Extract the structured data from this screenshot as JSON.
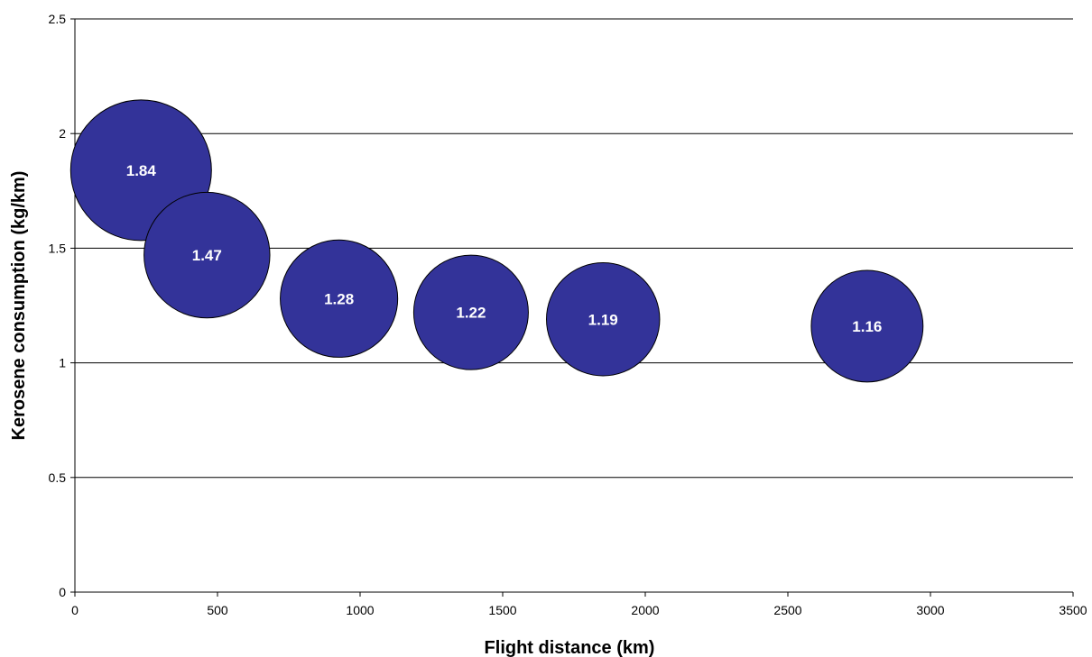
{
  "chart_data": {
    "type": "bubble",
    "title": "",
    "xlabel": "Flight distance (km)",
    "ylabel": "Kerosene consumption (kg/km)",
    "xlim": [
      0,
      3500
    ],
    "ylim": [
      0,
      2.5
    ],
    "x_ticks": [
      0,
      500,
      1000,
      1500,
      2000,
      2500,
      3000,
      3500
    ],
    "x_tick_labels": [
      "0",
      "500",
      "1000",
      "1500",
      "2000",
      "2500",
      "3000",
      "3500"
    ],
    "y_ticks": [
      0,
      0.5,
      1,
      1.5,
      2,
      2.5
    ],
    "y_tick_labels": [
      "0",
      "0.5",
      "1",
      "1.5",
      "2",
      "2.5"
    ],
    "grid": "horizontal",
    "legend": "none",
    "bubble_color": "#333399",
    "points": [
      {
        "x": 232,
        "y": 1.84,
        "size": 1.84,
        "label": "1.84"
      },
      {
        "x": 463,
        "y": 1.47,
        "size": 1.47,
        "label": "1.47"
      },
      {
        "x": 926,
        "y": 1.28,
        "size": 1.28,
        "label": "1.28"
      },
      {
        "x": 1389,
        "y": 1.22,
        "size": 1.22,
        "label": "1.22"
      },
      {
        "x": 1852,
        "y": 1.19,
        "size": 1.19,
        "label": "1.19"
      },
      {
        "x": 2778,
        "y": 1.16,
        "size": 1.16,
        "label": "1.16"
      }
    ]
  }
}
